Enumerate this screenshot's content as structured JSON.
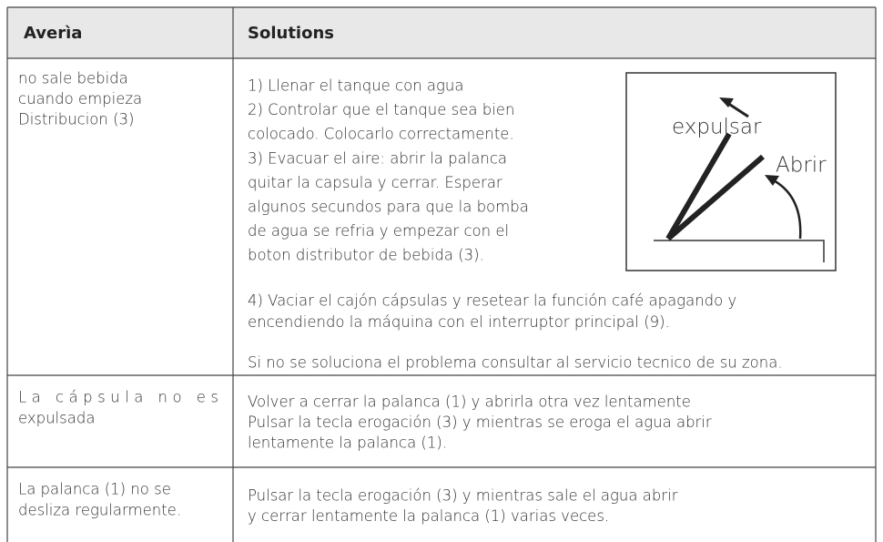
{
  "header": {
    "col1": "Averìa",
    "col2": "Solutions"
  },
  "rows": [
    {
      "problem": [
        "no sale bebida",
        "cuando empieza",
        "Distribucion (3)"
      ],
      "solution": {
        "steps": [
          "1) Llenar el tanque con agua",
          "2) Controlar que el tanque sea bien",
          "colocado. Colocarlo correctamente.",
          "3) Evacuar el aire: abrir la palanca",
          "quitar la capsula y cerrar. Esperar",
          "algunos secundos para que  la bomba",
          "de agua se refria y empezar con el",
          "boton distributor de bebida (3)."
        ],
        "diagram": {
          "label_expel": "expulsar",
          "label_open": "Abrir"
        },
        "step4": [
          "4) Vaciar el cajón cápsulas y resetear la función café apagando y",
          "encendiendo la máquina con el interruptor principal (9)."
        ],
        "note": "Si no se soluciona el problema  consultar al  servicio tecnico de su zona."
      }
    },
    {
      "problem": [
        "La cápsula no es",
        "expulsada"
      ],
      "solution": [
        "Volver a cerrar la palanca (1) y abrirla otra vez lentamente",
        "Pulsar la tecla erogación (3) y mientras se eroga el agua abrir",
        "lentamente la palanca (1)."
      ]
    },
    {
      "problem": [
        "La palanca (1) no se",
        "desliza regularmente."
      ],
      "solution": [
        "Pulsar la tecla erogación (3) y mientras sale el agua abrir",
        "y cerrar lentamente la palanca (1) varias veces."
      ]
    }
  ]
}
